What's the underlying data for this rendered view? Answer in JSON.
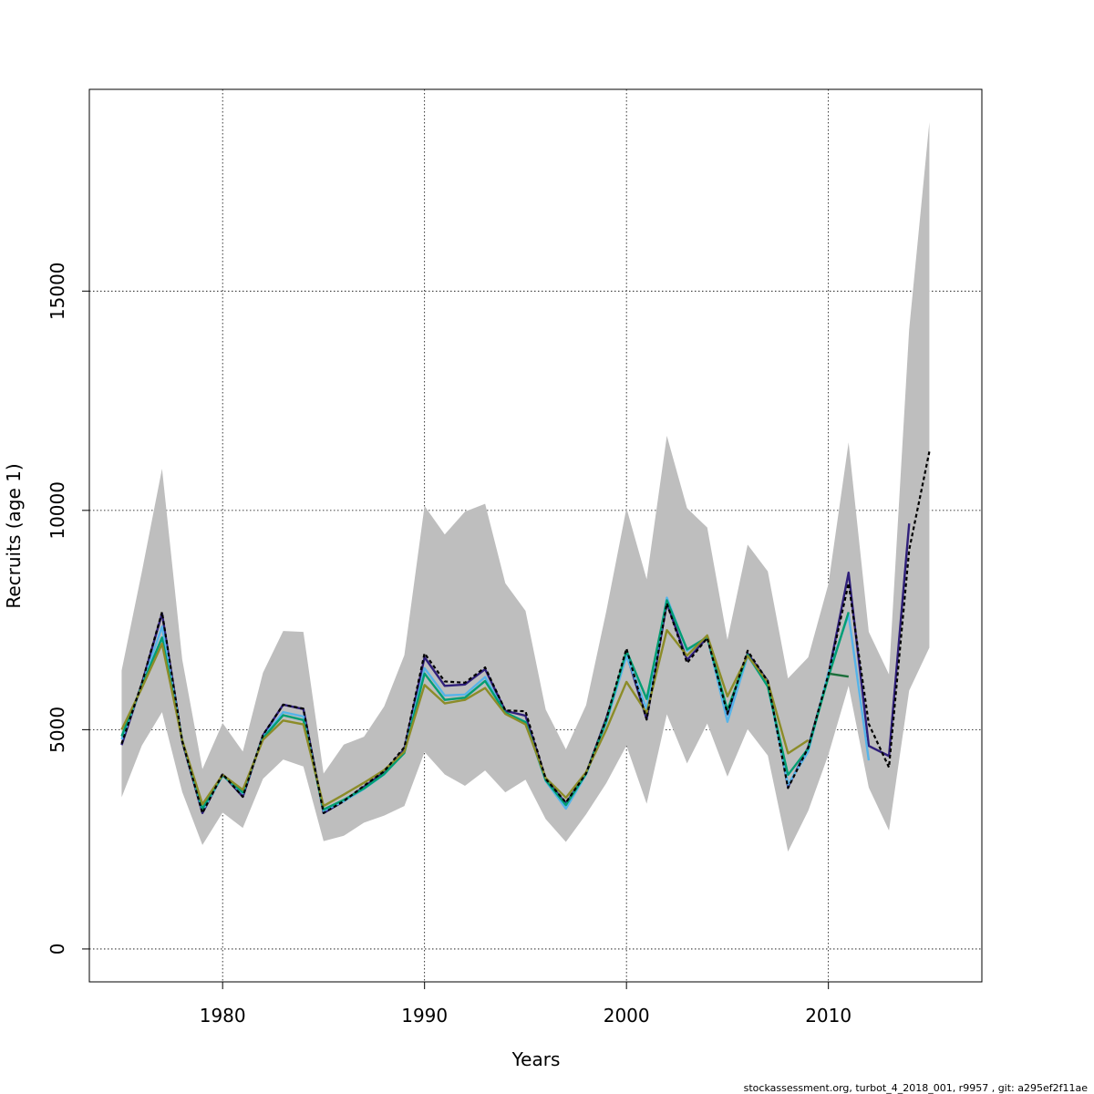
{
  "chart_data": {
    "type": "line",
    "xlabel": "Years",
    "ylabel": "Recruits (age 1)",
    "xlim": [
      1973.4,
      2017.6
    ],
    "ylim": [
      -750,
      19600
    ],
    "x_ticks": [
      1980,
      1990,
      2000,
      2010
    ],
    "y_ticks": [
      0,
      5000,
      10000,
      15000
    ],
    "x_tick_labels": [
      "1980",
      "1990",
      "2000",
      "2010"
    ],
    "y_tick_labels": [
      "0",
      "5000",
      "10000",
      "15000"
    ],
    "grid": true,
    "footer": "stockassessment.org, turbot_4_2018_001, r9957 , git: a295ef2f11ae",
    "confidence_band": {
      "color": "#bebebe",
      "years": [
        1975,
        1976,
        1977,
        1978,
        1979,
        1980,
        1981,
        1982,
        1983,
        1984,
        1985,
        1986,
        1987,
        1988,
        1989,
        1990,
        1991,
        1992,
        1993,
        1994,
        1995,
        1996,
        1997,
        1998,
        1999,
        2000,
        2001,
        2002,
        2003,
        2004,
        2005,
        2006,
        2007,
        2008,
        2009,
        2010,
        2011,
        2012,
        2013,
        2014,
        2015
      ],
      "upper": [
        6350,
        8600,
        10950,
        6600,
        4100,
        5150,
        4500,
        6300,
        7250,
        7230,
        4000,
        4660,
        4840,
        5530,
        6700,
        10100,
        9450,
        9970,
        10150,
        8340,
        7710,
        5460,
        4550,
        5560,
        7700,
        10050,
        8430,
        11700,
        10050,
        9610,
        7050,
        9220,
        8610,
        6170,
        6650,
        8320,
        11550,
        7230,
        6260,
        14130,
        18850
      ],
      "lower": [
        3460,
        4640,
        5400,
        3580,
        2370,
        3110,
        2760,
        3880,
        4320,
        4160,
        2460,
        2580,
        2880,
        3040,
        3260,
        4490,
        3980,
        3720,
        4070,
        3570,
        3860,
        2960,
        2440,
        3070,
        3780,
        4640,
        3310,
        5350,
        4230,
        5140,
        3930,
        5010,
        4410,
        2220,
        3150,
        4430,
        6000,
        3680,
        2700,
        5890,
        6870
      ]
    },
    "series": [
      {
        "color": "#2f1f7a",
        "years": [
          1975,
          1976,
          1977,
          1978,
          1979,
          1980,
          1981,
          1982,
          1983,
          1984,
          1985,
          1986,
          1987,
          1988,
          1989,
          1990,
          1991,
          1992,
          1993,
          1994,
          1995,
          1996,
          1997,
          1998,
          1999,
          2000,
          2001,
          2002,
          2003,
          2004,
          2005,
          2006,
          2007,
          2008,
          2009,
          2010,
          2011,
          2012,
          2013,
          2014
        ],
        "values": [
          4650,
          6050,
          7650,
          4730,
          3100,
          3980,
          3470,
          4870,
          5570,
          5470,
          3100,
          3370,
          3700,
          4030,
          4560,
          6650,
          6000,
          6030,
          6380,
          5430,
          5320,
          3880,
          3320,
          4000,
          5260,
          6730,
          5240,
          7890,
          6590,
          7100,
          5350,
          6740,
          6110,
          3700,
          4600,
          6250,
          8580,
          4630,
          4400,
          9700
        ]
      },
      {
        "color": "#56b4e9",
        "years": [
          1975,
          1976,
          1977,
          1978,
          1979,
          1980,
          1981,
          1982,
          1983,
          1984,
          1985,
          1986,
          1987,
          1988,
          1989,
          1990,
          1991,
          1992,
          1993,
          1994,
          1995,
          1996,
          1997,
          1998,
          1999,
          2000,
          2001,
          2002,
          2003,
          2004,
          2005,
          2006,
          2007,
          2008,
          2009,
          2010,
          2011,
          2012
        ],
        "values": [
          4780,
          6000,
          7350,
          4760,
          3150,
          3950,
          3550,
          4830,
          5400,
          5300,
          3150,
          3370,
          3650,
          3980,
          4490,
          6400,
          5780,
          5800,
          6200,
          5380,
          5180,
          3830,
          3200,
          3980,
          5160,
          6680,
          5470,
          8010,
          6800,
          7120,
          5180,
          6680,
          6000,
          3750,
          4500,
          6300,
          7620,
          4300
        ]
      },
      {
        "color": "#009e73",
        "years": [
          1975,
          1976,
          1977,
          1978,
          1979,
          1980,
          1981,
          1982,
          1983,
          1984,
          1985,
          1986,
          1987,
          1988,
          1989,
          1990,
          1991,
          1992,
          1993,
          1994,
          1995,
          1996,
          1997,
          1998,
          1999,
          2000,
          2001,
          2002,
          2003,
          2004,
          2005,
          2006,
          2007,
          2008,
          2009,
          2010,
          2011
        ],
        "values": [
          4850,
          6000,
          7100,
          4760,
          3200,
          3960,
          3570,
          4810,
          5330,
          5220,
          3180,
          3400,
          3660,
          3990,
          4470,
          6280,
          5680,
          5730,
          6110,
          5390,
          5170,
          3850,
          3280,
          4000,
          5200,
          6800,
          5700,
          7950,
          6830,
          7110,
          5450,
          6710,
          5980,
          3970,
          4570,
          6200,
          7680
        ]
      },
      {
        "color": "#8c8c28",
        "years": [
          1975,
          1976,
          1977,
          1978,
          1979,
          1980,
          1981,
          1982,
          1983,
          1984,
          1985,
          1986,
          1987,
          1988,
          1989,
          1990,
          1991,
          1992,
          1993,
          1994,
          1995,
          1996,
          1997,
          1998,
          1999,
          2000,
          2001,
          2002,
          2003,
          2004,
          2005,
          2006,
          2007,
          2008,
          2009
        ],
        "values": [
          5000,
          5950,
          6960,
          4760,
          3300,
          3970,
          3630,
          4770,
          5210,
          5120,
          3260,
          3520,
          3790,
          4080,
          4500,
          6020,
          5600,
          5680,
          5950,
          5360,
          5120,
          3900,
          3450,
          4030,
          5000,
          6090,
          5380,
          7270,
          6690,
          7150,
          5760,
          6680,
          6090,
          4460,
          4760
        ]
      },
      {
        "color": "#1b6e3a",
        "years": [
          2010,
          2011
        ],
        "values": [
          6280,
          6210
        ]
      }
    ],
    "estimate": {
      "color": "#000000",
      "style": "dashed",
      "years": [
        1975,
        1976,
        1977,
        1978,
        1979,
        1980,
        1981,
        1982,
        1983,
        1984,
        1985,
        1986,
        1987,
        1988,
        1989,
        1990,
        1991,
        1992,
        1993,
        1994,
        1995,
        1996,
        1997,
        1998,
        1999,
        2000,
        2001,
        2002,
        2003,
        2004,
        2005,
        2006,
        2007,
        2008,
        2009,
        2010,
        2011,
        2012,
        2013,
        2014,
        2015
      ],
      "values": [
        4680,
        6060,
        7680,
        4740,
        3100,
        3990,
        3470,
        4880,
        5570,
        5480,
        3100,
        3370,
        3720,
        4050,
        4600,
        6740,
        6100,
        6070,
        6420,
        5440,
        5420,
        3880,
        3340,
        4000,
        5240,
        6850,
        5230,
        7880,
        6520,
        7090,
        5370,
        6800,
        6100,
        3670,
        4590,
        6260,
        8340,
        5130,
        4140,
        9100,
        11340
      ]
    }
  }
}
